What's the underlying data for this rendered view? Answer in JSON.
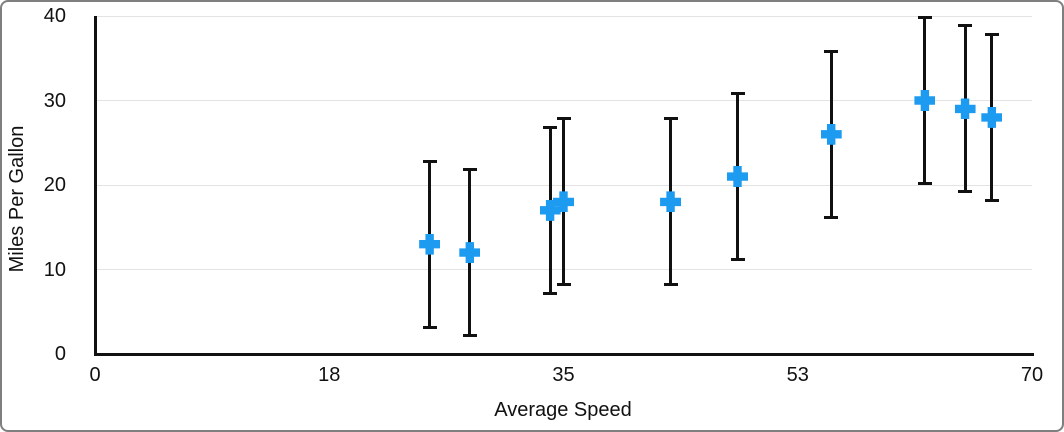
{
  "chart_data": {
    "type": "scatter",
    "title": "",
    "xlabel": "Average Speed",
    "ylabel": "Miles Per Gallon",
    "xlim": [
      0,
      70
    ],
    "ylim": [
      0,
      40
    ],
    "grid": "horizontal-only",
    "legend": "none",
    "x_ticks": [
      {
        "label": "0",
        "value": 0
      },
      {
        "label": "18",
        "value": 17.5
      },
      {
        "label": "35",
        "value": 35
      },
      {
        "label": "53",
        "value": 52.5
      },
      {
        "label": "70",
        "value": 70
      }
    ],
    "y_ticks": [
      {
        "label": "0",
        "value": 0
      },
      {
        "label": "10",
        "value": 10
      },
      {
        "label": "20",
        "value": 20
      },
      {
        "label": "30",
        "value": 30
      },
      {
        "label": "40",
        "value": 40
      }
    ],
    "series": [
      {
        "name": "Miles Per Gallon",
        "marker": "plus",
        "points": [
          {
            "x": 25,
            "y": 13,
            "error_plus": 10,
            "error_minus": 10
          },
          {
            "x": 28,
            "y": 12,
            "error_plus": 10,
            "error_minus": 10
          },
          {
            "x": 34,
            "y": 17,
            "error_plus": 10,
            "error_minus": 10
          },
          {
            "x": 35,
            "y": 18,
            "error_plus": 10,
            "error_minus": 10
          },
          {
            "x": 43,
            "y": 18,
            "error_plus": 10,
            "error_minus": 10
          },
          {
            "x": 48,
            "y": 21,
            "error_plus": 10,
            "error_minus": 10
          },
          {
            "x": 55,
            "y": 26,
            "error_plus": 10,
            "error_minus": 10
          },
          {
            "x": 62,
            "y": 30,
            "error_plus": 10,
            "error_minus": 10
          },
          {
            "x": 65,
            "y": 29,
            "error_plus": 10,
            "error_minus": 10
          },
          {
            "x": 67,
            "y": 28,
            "error_plus": 10,
            "error_minus": 10
          }
        ]
      }
    ],
    "colors": {
      "marker": "#1d9bf0",
      "error_bar": "#111111",
      "axis": "#111111",
      "grid": "#e3e3e3",
      "text": "#111111",
      "background": "#ffffff",
      "frame_border": "#7f7f7f"
    }
  }
}
